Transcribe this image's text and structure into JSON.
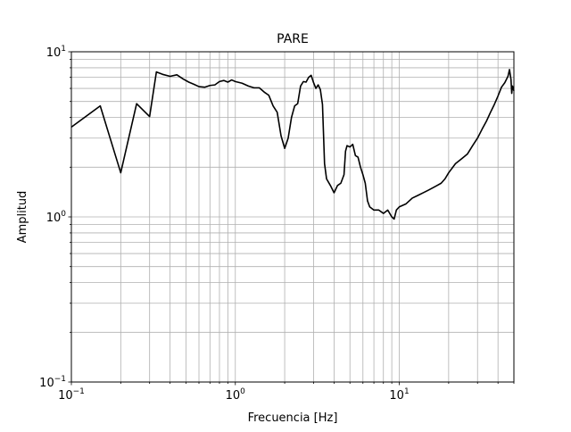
{
  "chart_data": {
    "type": "line",
    "title": "PARE",
    "xlabel": "Frecuencia [Hz]",
    "ylabel": "Amplitud",
    "xscale": "log",
    "yscale": "log",
    "xlim": [
      0.1,
      50
    ],
    "ylim": [
      0.1,
      10
    ],
    "grid": "both major and minor",
    "legend": "none",
    "line_color": "#000000",
    "grid_color": "#b0b0b0",
    "x_ticks": [
      {
        "base": "10",
        "exp": "−1",
        "value": 0.1
      },
      {
        "base": "10",
        "exp": "0",
        "value": 1
      },
      {
        "base": "10",
        "exp": "1",
        "value": 10
      }
    ],
    "y_ticks": [
      {
        "base": "10",
        "exp": "−1",
        "value": 0.1
      },
      {
        "base": "10",
        "exp": "0",
        "value": 1
      },
      {
        "base": "10",
        "exp": "1",
        "value": 10
      }
    ],
    "series": [
      {
        "points": [
          [
            0.1,
            3.5
          ],
          [
            0.15,
            4.7
          ],
          [
            0.2,
            1.85
          ],
          [
            0.25,
            4.85
          ],
          [
            0.3,
            4.05
          ],
          [
            0.33,
            7.55
          ],
          [
            0.36,
            7.3
          ],
          [
            0.4,
            7.1
          ],
          [
            0.44,
            7.25
          ],
          [
            0.48,
            6.85
          ],
          [
            0.52,
            6.55
          ],
          [
            0.56,
            6.35
          ],
          [
            0.6,
            6.15
          ],
          [
            0.65,
            6.1
          ],
          [
            0.7,
            6.25
          ],
          [
            0.75,
            6.3
          ],
          [
            0.8,
            6.6
          ],
          [
            0.85,
            6.7
          ],
          [
            0.9,
            6.55
          ],
          [
            0.95,
            6.75
          ],
          [
            1.0,
            6.6
          ],
          [
            1.1,
            6.45
          ],
          [
            1.2,
            6.2
          ],
          [
            1.3,
            6.05
          ],
          [
            1.4,
            6.05
          ],
          [
            1.5,
            5.7
          ],
          [
            1.6,
            5.45
          ],
          [
            1.7,
            4.7
          ],
          [
            1.8,
            4.3
          ],
          [
            1.9,
            3.1
          ],
          [
            2.0,
            2.6
          ],
          [
            2.1,
            3.0
          ],
          [
            2.2,
            4.0
          ],
          [
            2.3,
            4.7
          ],
          [
            2.4,
            4.85
          ],
          [
            2.5,
            6.2
          ],
          [
            2.6,
            6.6
          ],
          [
            2.7,
            6.55
          ],
          [
            2.8,
            7.0
          ],
          [
            2.9,
            7.2
          ],
          [
            3.0,
            6.5
          ],
          [
            3.1,
            6.0
          ],
          [
            3.2,
            6.3
          ],
          [
            3.3,
            5.9
          ],
          [
            3.4,
            4.8
          ],
          [
            3.5,
            2.1
          ],
          [
            3.6,
            1.7
          ],
          [
            3.8,
            1.55
          ],
          [
            4.0,
            1.4
          ],
          [
            4.2,
            1.55
          ],
          [
            4.4,
            1.6
          ],
          [
            4.6,
            1.8
          ],
          [
            4.7,
            2.5
          ],
          [
            4.8,
            2.7
          ],
          [
            5.0,
            2.65
          ],
          [
            5.2,
            2.75
          ],
          [
            5.4,
            2.35
          ],
          [
            5.6,
            2.3
          ],
          [
            5.8,
            2.0
          ],
          [
            6.0,
            1.8
          ],
          [
            6.2,
            1.6
          ],
          [
            6.4,
            1.25
          ],
          [
            6.6,
            1.15
          ],
          [
            7.0,
            1.1
          ],
          [
            7.5,
            1.1
          ],
          [
            8.0,
            1.05
          ],
          [
            8.5,
            1.1
          ],
          [
            9.0,
            1.0
          ],
          [
            9.3,
            0.97
          ],
          [
            9.6,
            1.1
          ],
          [
            10.0,
            1.15
          ],
          [
            11.0,
            1.2
          ],
          [
            12.0,
            1.3
          ],
          [
            13.0,
            1.35
          ],
          [
            14.0,
            1.4
          ],
          [
            15.0,
            1.45
          ],
          [
            16.0,
            1.5
          ],
          [
            17.0,
            1.55
          ],
          [
            18.0,
            1.6
          ],
          [
            19.0,
            1.7
          ],
          [
            20.0,
            1.85
          ],
          [
            22.0,
            2.1
          ],
          [
            24.0,
            2.25
          ],
          [
            26.0,
            2.4
          ],
          [
            28.0,
            2.7
          ],
          [
            30.0,
            3.0
          ],
          [
            32.0,
            3.4
          ],
          [
            34.0,
            3.8
          ],
          [
            36.0,
            4.3
          ],
          [
            38.0,
            4.8
          ],
          [
            40.0,
            5.4
          ],
          [
            42.0,
            6.1
          ],
          [
            44.0,
            6.5
          ],
          [
            46.0,
            7.1
          ],
          [
            47.0,
            7.8
          ],
          [
            48.0,
            6.8
          ],
          [
            48.5,
            5.6
          ],
          [
            49.0,
            6.2
          ],
          [
            50.0,
            5.8
          ]
        ]
      }
    ]
  }
}
